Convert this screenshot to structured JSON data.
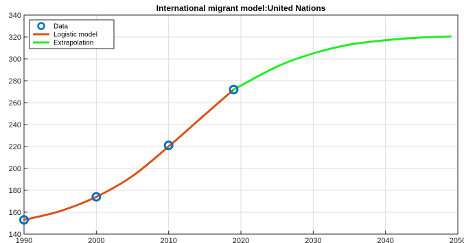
{
  "chart_data": {
    "type": "line",
    "title": "International migrant model:United Nations",
    "xlabel": "",
    "ylabel": "",
    "xlim": [
      1990,
      2050
    ],
    "ylim": [
      140,
      340
    ],
    "xticks": [
      1990,
      2000,
      2010,
      2020,
      2030,
      2040,
      2050
    ],
    "yticks": [
      140,
      160,
      180,
      200,
      220,
      240,
      260,
      280,
      300,
      320,
      340
    ],
    "grid": true,
    "legend_position": "top-left",
    "series": [
      {
        "name": "Data",
        "kind": "marker",
        "color": "#0072BD",
        "x": [
          1990,
          2000,
          2010,
          2019
        ],
        "y": [
          153,
          174,
          221,
          272
        ]
      },
      {
        "name": "Logistic model",
        "kind": "line",
        "color": "#D95319",
        "x": [
          1990,
          1995,
          2000,
          2005,
          2010,
          2015,
          2019
        ],
        "y": [
          153,
          161,
          174,
          193,
          220,
          249,
          272
        ]
      },
      {
        "name": "Extrapolation",
        "kind": "line",
        "color": "#22EE22",
        "x": [
          2019,
          2025,
          2030,
          2035,
          2040,
          2045,
          2049
        ],
        "y": [
          272,
          293,
          305,
          313,
          317,
          319.5,
          320.5
        ]
      }
    ]
  }
}
